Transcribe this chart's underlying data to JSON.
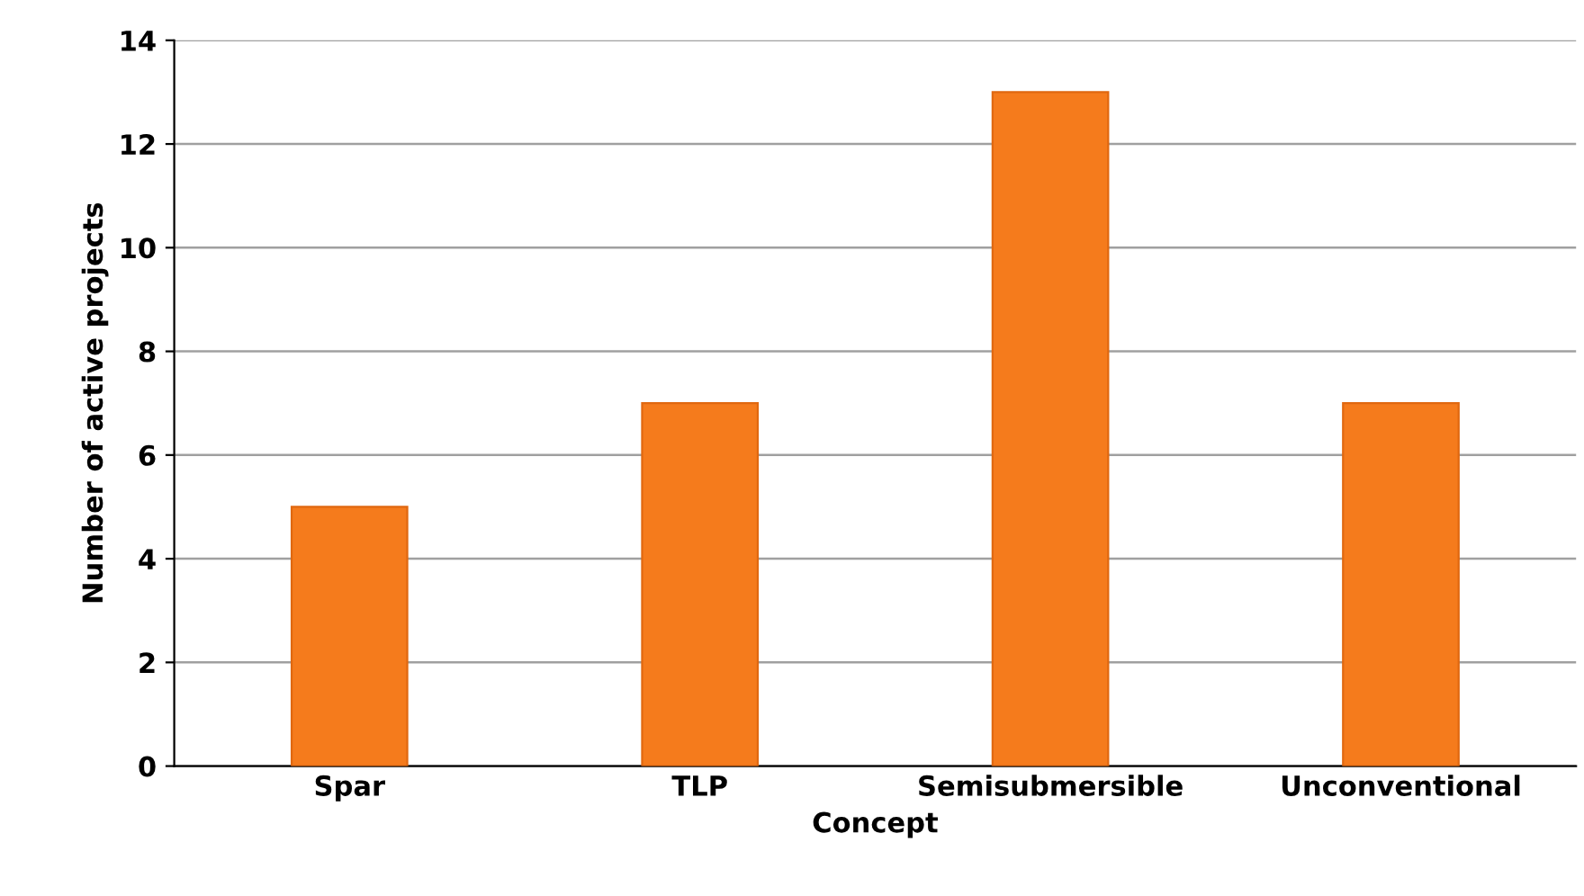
{
  "chart_data": {
    "type": "bar",
    "xlabel": "Concept",
    "ylabel": "Number of active projects",
    "categories": [
      "Spar",
      "TLP",
      "Semisubmersible",
      "Unconventional"
    ],
    "values": [
      5,
      7,
      13,
      7
    ],
    "color": "#f57b1c",
    "ylim": [
      0,
      14
    ],
    "yticks": [
      0,
      2,
      4,
      6,
      8,
      10,
      12,
      14
    ],
    "grid": "y",
    "legend": false
  }
}
